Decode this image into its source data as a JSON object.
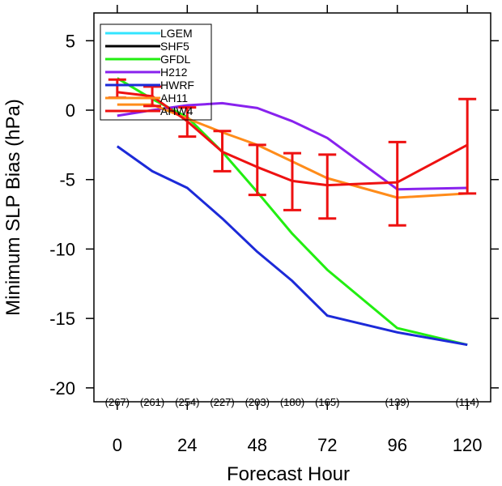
{
  "chart_data": {
    "type": "line",
    "title": "",
    "xlabel": "Forecast Hour",
    "ylabel": "Minimum SLP Bias (hPa)",
    "xlim": [
      -8,
      128
    ],
    "ylim": [
      -21,
      7
    ],
    "xticks": [
      0,
      24,
      48,
      72,
      96,
      120
    ],
    "yticks": [
      5,
      0,
      -5,
      -10,
      -15,
      -20
    ],
    "grid": false,
    "legend_position": "top-left",
    "series": [
      {
        "name": "LGEM",
        "color": "#33e5ff",
        "x": [],
        "y": []
      },
      {
        "name": "SHF5",
        "color": "#000000",
        "x": [],
        "y": []
      },
      {
        "name": "GFDL",
        "color": "#22ee11",
        "x": [
          0,
          12,
          24,
          36,
          48,
          60,
          72,
          96,
          120
        ],
        "y": [
          2.3,
          0.8,
          -0.5,
          -3.0,
          -5.9,
          -8.9,
          -11.5,
          -15.7,
          -16.9
        ]
      },
      {
        "name": "H212",
        "color": "#8822ee",
        "x": [
          0,
          12,
          24,
          36,
          48,
          60,
          72,
          96,
          120
        ],
        "y": [
          -0.4,
          0.0,
          0.35,
          0.5,
          0.15,
          -0.8,
          -2.0,
          -5.7,
          -5.6
        ]
      },
      {
        "name": "HWRF",
        "color": "#1c2ad8",
        "x": [
          0,
          12,
          24,
          36,
          48,
          60,
          72,
          96,
          120
        ],
        "y": [
          -2.6,
          -4.4,
          -5.6,
          -7.8,
          -10.2,
          -12.3,
          -14.8,
          -16.0,
          -16.9
        ]
      },
      {
        "name": "AH11",
        "color": "#ff8c1a",
        "x": [
          0,
          12,
          24,
          36,
          48,
          60,
          72,
          96,
          120
        ],
        "y": [
          0.4,
          0.4,
          -0.6,
          -1.6,
          -2.5,
          -3.7,
          -4.9,
          -6.3,
          -6.0
        ]
      },
      {
        "name": "AHW4",
        "color": "#ee1111",
        "x": [
          0,
          12,
          24,
          36,
          48,
          60,
          72,
          96,
          120
        ],
        "y": [
          1.3,
          1.0,
          -0.8,
          -3.0,
          -4.1,
          -5.1,
          -5.4,
          -5.2,
          -2.5
        ],
        "error_low": [
          0.9,
          0.3,
          -1.9,
          -4.4,
          -6.1,
          -7.2,
          -7.8,
          -8.3,
          -6.0
        ],
        "error_high": [
          2.2,
          1.7,
          0.2,
          -1.5,
          -2.5,
          -3.1,
          -3.2,
          -2.3,
          0.8
        ]
      }
    ],
    "sample_counts": [
      {
        "x": 0,
        "label": "(267)"
      },
      {
        "x": 12,
        "label": "(261)"
      },
      {
        "x": 24,
        "label": "(254)"
      },
      {
        "x": 36,
        "label": "(227)"
      },
      {
        "x": 48,
        "label": "(203)"
      },
      {
        "x": 60,
        "label": "(180)"
      },
      {
        "x": 72,
        "label": "(165)"
      },
      {
        "x": 96,
        "label": "(139)"
      },
      {
        "x": 120,
        "label": "(114)"
      }
    ]
  }
}
